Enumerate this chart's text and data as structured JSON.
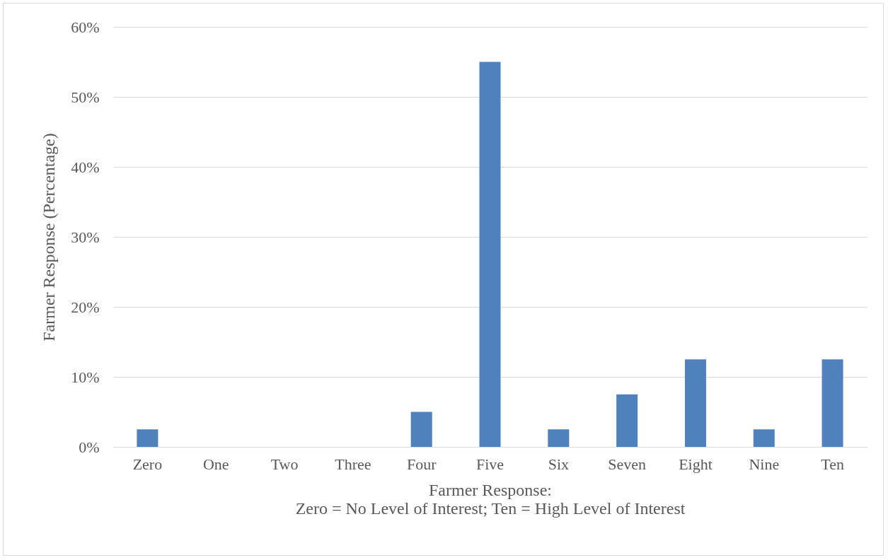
{
  "chart_data": {
    "type": "bar",
    "xlabel": "Farmer Response:\nZero = No Level of Interest; Ten = High Level of Interest",
    "ylabel": "Farmer Response (Percentage)",
    "categories": [
      "Zero",
      "One",
      "Two",
      "Three",
      "Four",
      "Five",
      "Six",
      "Seven",
      "Eight",
      "Nine",
      "Ten"
    ],
    "values": [
      2.5,
      0,
      0,
      0,
      5,
      55,
      2.5,
      7.5,
      12.5,
      2.5,
      12.5
    ],
    "color": "#4f81bd",
    "ylim": [
      0,
      60
    ],
    "yticks": [
      {
        "value": 0,
        "label": "0%"
      },
      {
        "value": 10,
        "label": "10%"
      },
      {
        "value": 20,
        "label": "20%"
      },
      {
        "value": 30,
        "label": "30%"
      },
      {
        "value": 40,
        "label": "40%"
      },
      {
        "value": 50,
        "label": "50%"
      },
      {
        "value": 60,
        "label": "60%"
      }
    ],
    "grid": "y",
    "legend": false
  }
}
